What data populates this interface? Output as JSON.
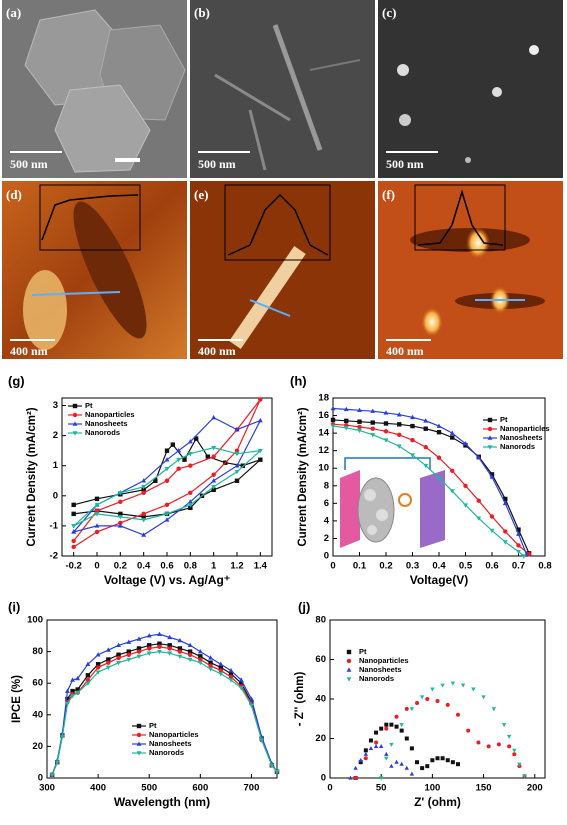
{
  "panels": [
    {
      "label": "(a)",
      "scale": "500 nm"
    },
    {
      "label": "(b)",
      "scale": "500 nm"
    },
    {
      "label": "(c)",
      "scale": "500 nm"
    },
    {
      "label": "(d)",
      "scale": "400 nm"
    },
    {
      "label": "(e)",
      "scale": "400 nm"
    },
    {
      "label": "(f)",
      "scale": "400 nm"
    }
  ],
  "chart_data": [
    {
      "type": "line",
      "label": "(g)",
      "x_label": "Voltage (V) vs. Ag/Ag⁺",
      "y_label": "Current Density (mA/cm²)",
      "xlim": [
        -0.3,
        1.5
      ],
      "xticks": [
        -0.2,
        0.0,
        0.2,
        0.4,
        0.6,
        0.8,
        1.0,
        1.2,
        1.4
      ],
      "ylim": [
        -2,
        3.25
      ],
      "yticks": [
        -2,
        -1,
        0,
        1,
        2,
        3
      ],
      "legend": "top-left",
      "series": [
        {
          "name": "Pt",
          "color": "#111111",
          "marker": "square",
          "x": [
            -0.2,
            0,
            0.2,
            0.4,
            0.5,
            0.6,
            0.65,
            0.75,
            0.85,
            0.95,
            1.1,
            1.25,
            1.4,
            1.2,
            1.0,
            0.9,
            0.8,
            0.6,
            0.4,
            0.2,
            0,
            -0.2
          ],
          "values": [
            -0.3,
            -0.1,
            0.05,
            0.2,
            0.5,
            1.5,
            1.7,
            1.2,
            1.9,
            1.3,
            1.1,
            1.0,
            1.2,
            0.5,
            0.2,
            0.0,
            -0.4,
            -0.6,
            -0.7,
            -0.6,
            -0.5,
            -0.6
          ]
        },
        {
          "name": "Nanoparticles",
          "color": "#ee1c25",
          "marker": "circle",
          "x": [
            -0.2,
            0,
            0.2,
            0.4,
            0.6,
            0.7,
            0.8,
            1.0,
            1.2,
            1.4,
            1.2,
            1.0,
            0.8,
            0.6,
            0.4,
            0.2,
            0,
            -0.2
          ],
          "values": [
            -1.5,
            -0.5,
            -0.2,
            0.1,
            0.5,
            0.9,
            1.0,
            1.3,
            2.2,
            3.2,
            1.5,
            0.7,
            0.1,
            -0.3,
            -0.6,
            -0.9,
            -1.2,
            -1.7
          ]
        },
        {
          "name": "Nanosheets",
          "color": "#2a3ee0",
          "marker": "triangle-up",
          "x": [
            -0.2,
            0,
            0.2,
            0.4,
            0.6,
            0.7,
            0.8,
            1.0,
            1.2,
            1.4,
            1.2,
            1.0,
            0.8,
            0.6,
            0.4,
            0.2,
            0,
            -0.2
          ],
          "values": [
            -1.2,
            -0.3,
            0.1,
            0.5,
            1.2,
            1.5,
            1.8,
            2.6,
            2.2,
            2.5,
            1.0,
            0.5,
            -0.2,
            -0.8,
            -1.3,
            -1.0,
            -1.0,
            -1.2
          ]
        },
        {
          "name": "Nanorods",
          "color": "#1fb89a",
          "marker": "triangle-down",
          "x": [
            -0.2,
            0,
            0.2,
            0.4,
            0.6,
            0.7,
            0.8,
            1.0,
            1.2,
            1.4,
            1.2,
            1.0,
            0.8,
            0.6,
            0.4,
            0.2,
            0,
            -0.2
          ],
          "values": [
            -1.0,
            -0.3,
            0.1,
            0.3,
            0.9,
            1.2,
            1.4,
            1.6,
            1.4,
            1.5,
            0.8,
            0.3,
            -0.3,
            -0.6,
            -0.8,
            -0.7,
            -0.6,
            -1.0
          ]
        }
      ]
    },
    {
      "type": "line",
      "label": "(h)",
      "x_label": "Voltage(V)",
      "y_label": "Current Density (mA/cm²)",
      "xlim": [
        0,
        0.8
      ],
      "xticks": [
        0.0,
        0.1,
        0.2,
        0.3,
        0.4,
        0.5,
        0.6,
        0.7,
        0.8
      ],
      "ylim": [
        0,
        18
      ],
      "yticks": [
        0,
        2,
        4,
        6,
        8,
        10,
        12,
        14,
        16,
        18
      ],
      "legend": "top-right",
      "series": [
        {
          "name": "Pt",
          "color": "#111111",
          "marker": "square",
          "x": [
            0,
            0.05,
            0.1,
            0.15,
            0.2,
            0.25,
            0.3,
            0.35,
            0.4,
            0.45,
            0.5,
            0.55,
            0.6,
            0.65,
            0.7,
            0.74
          ],
          "values": [
            15.5,
            15.4,
            15.3,
            15.2,
            15.1,
            15.0,
            14.8,
            14.5,
            14.1,
            13.5,
            12.6,
            11.3,
            9.3,
            6.5,
            3.0,
            0.3
          ]
        },
        {
          "name": "Nanoparticles",
          "color": "#ee1c25",
          "marker": "circle",
          "x": [
            0,
            0.05,
            0.1,
            0.15,
            0.2,
            0.25,
            0.3,
            0.35,
            0.4,
            0.45,
            0.5,
            0.55,
            0.6,
            0.65,
            0.7,
            0.74
          ],
          "values": [
            15.0,
            14.9,
            14.7,
            14.5,
            14.2,
            13.8,
            13.2,
            12.4,
            11.2,
            9.7,
            8.0,
            6.3,
            4.5,
            2.8,
            1.2,
            0.2
          ]
        },
        {
          "name": "Nanosheets",
          "color": "#2a3ee0",
          "marker": "triangle-up",
          "x": [
            0,
            0.05,
            0.1,
            0.15,
            0.2,
            0.25,
            0.3,
            0.35,
            0.4,
            0.45,
            0.5,
            0.55,
            0.6,
            0.65,
            0.7,
            0.73
          ],
          "values": [
            16.8,
            16.7,
            16.6,
            16.5,
            16.3,
            16.1,
            15.8,
            15.4,
            14.8,
            14.0,
            12.8,
            11.2,
            9.0,
            6.0,
            2.5,
            0.2
          ]
        },
        {
          "name": "Nanorods",
          "color": "#1fb89a",
          "marker": "triangle-down",
          "x": [
            0,
            0.05,
            0.1,
            0.15,
            0.2,
            0.25,
            0.3,
            0.35,
            0.4,
            0.45,
            0.5,
            0.55,
            0.6,
            0.65,
            0.7,
            0.72
          ],
          "values": [
            14.8,
            14.6,
            14.3,
            13.8,
            13.2,
            12.5,
            11.5,
            10.3,
            8.9,
            7.4,
            5.8,
            4.3,
            2.9,
            1.6,
            0.5,
            0.0
          ]
        }
      ]
    },
    {
      "type": "line",
      "label": "(i)",
      "x_label": "Wavelength (nm)",
      "y_label": "IPCE (%)",
      "xlim": [
        300,
        750
      ],
      "xticks": [
        300,
        400,
        500,
        600,
        700
      ],
      "ylim": [
        0,
        100
      ],
      "yticks": [
        0,
        20,
        40,
        60,
        80,
        100
      ],
      "legend": "bottom-center",
      "series": [
        {
          "name": "Pt",
          "color": "#111111",
          "marker": "square",
          "x": [
            310,
            320,
            330,
            340,
            350,
            360,
            380,
            400,
            420,
            440,
            460,
            480,
            500,
            520,
            540,
            560,
            580,
            600,
            620,
            640,
            660,
            680,
            700,
            720,
            740,
            750
          ],
          "values": [
            2,
            10,
            27,
            50,
            55,
            56,
            65,
            72,
            75,
            78,
            80,
            82,
            84,
            85,
            84,
            82,
            80,
            77,
            73,
            70,
            66,
            60,
            48,
            25,
            8,
            4
          ]
        },
        {
          "name": "Nanoparticles",
          "color": "#ee1c25",
          "marker": "circle",
          "x": [
            310,
            320,
            330,
            340,
            350,
            360,
            380,
            400,
            420,
            440,
            460,
            480,
            500,
            520,
            540,
            560,
            580,
            600,
            620,
            640,
            660,
            680,
            700,
            720,
            740,
            750
          ],
          "values": [
            2,
            10,
            27,
            48,
            53,
            54,
            62,
            70,
            73,
            76,
            78,
            80,
            82,
            83,
            82,
            80,
            78,
            75,
            71,
            68,
            64,
            58,
            47,
            24,
            8,
            4
          ]
        },
        {
          "name": "Nanosheets",
          "color": "#2a3ee0",
          "marker": "triangle-up",
          "x": [
            310,
            320,
            330,
            340,
            350,
            360,
            380,
            400,
            420,
            440,
            460,
            480,
            500,
            520,
            540,
            560,
            580,
            600,
            620,
            640,
            660,
            680,
            700,
            720,
            740,
            750
          ],
          "values": [
            2,
            11,
            28,
            55,
            62,
            63,
            72,
            78,
            81,
            84,
            86,
            88,
            90,
            91,
            89,
            87,
            84,
            80,
            76,
            72,
            68,
            62,
            50,
            26,
            9,
            4
          ]
        },
        {
          "name": "Nanorods",
          "color": "#1fb89a",
          "marker": "triangle-down",
          "x": [
            310,
            320,
            330,
            340,
            350,
            360,
            380,
            400,
            420,
            440,
            460,
            480,
            500,
            520,
            540,
            560,
            580,
            600,
            620,
            640,
            660,
            680,
            700,
            720,
            740,
            750
          ],
          "values": [
            2,
            10,
            26,
            47,
            52,
            54,
            60,
            67,
            70,
            73,
            75,
            77,
            79,
            80,
            79,
            77,
            75,
            73,
            69,
            66,
            62,
            57,
            46,
            24,
            8,
            4
          ]
        }
      ]
    },
    {
      "type": "scatter",
      "label": "(j)",
      "x_label": "Z' (ohm)",
      "y_label": "- Z'' (ohm)",
      "xlim": [
        0,
        210
      ],
      "xticks": [
        0,
        50,
        100,
        150,
        200
      ],
      "ylim": [
        0,
        80
      ],
      "yticks": [
        0,
        20,
        40,
        60,
        80
      ],
      "legend": "top-left",
      "series": [
        {
          "name": "Pt",
          "color": "#111111",
          "marker": "square",
          "x": [
            25,
            30,
            35,
            40,
            45,
            50,
            55,
            60,
            65,
            70,
            75,
            80,
            85,
            90,
            95,
            100,
            105,
            110,
            115,
            120,
            125
          ],
          "values": [
            0,
            8,
            14,
            19,
            23,
            25,
            27,
            27,
            26,
            24,
            20,
            15,
            8,
            5,
            6,
            9,
            10,
            10,
            9,
            8,
            7
          ]
        },
        {
          "name": "Nanoparticles",
          "color": "#ee1c25",
          "marker": "circle",
          "x": [
            25,
            35,
            45,
            55,
            65,
            75,
            85,
            95,
            105,
            115,
            125,
            135,
            145,
            155,
            165,
            175,
            180,
            185,
            190
          ],
          "values": [
            0,
            10,
            18,
            25,
            31,
            35,
            38,
            40,
            39,
            37,
            32,
            24,
            18,
            16,
            17,
            16,
            12,
            6,
            1
          ]
        },
        {
          "name": "Nanosheets",
          "color": "#2a3ee0",
          "marker": "triangle-up",
          "x": [
            20,
            25,
            30,
            35,
            40,
            45,
            50,
            55,
            60,
            65,
            70,
            75,
            80
          ],
          "values": [
            0,
            5,
            9,
            12,
            15,
            16,
            16,
            12,
            6,
            8,
            7,
            5,
            2
          ]
        },
        {
          "name": "Nanorods",
          "color": "#1fb89a",
          "marker": "triangle-down",
          "x": [
            50,
            55,
            60,
            70,
            80,
            90,
            100,
            110,
            120,
            130,
            140,
            150,
            160,
            170,
            175,
            180,
            185,
            190
          ],
          "values": [
            0,
            10,
            17,
            27,
            35,
            41,
            45,
            47,
            48,
            47,
            45,
            41,
            35,
            27,
            21,
            14,
            7,
            1
          ]
        }
      ]
    }
  ]
}
